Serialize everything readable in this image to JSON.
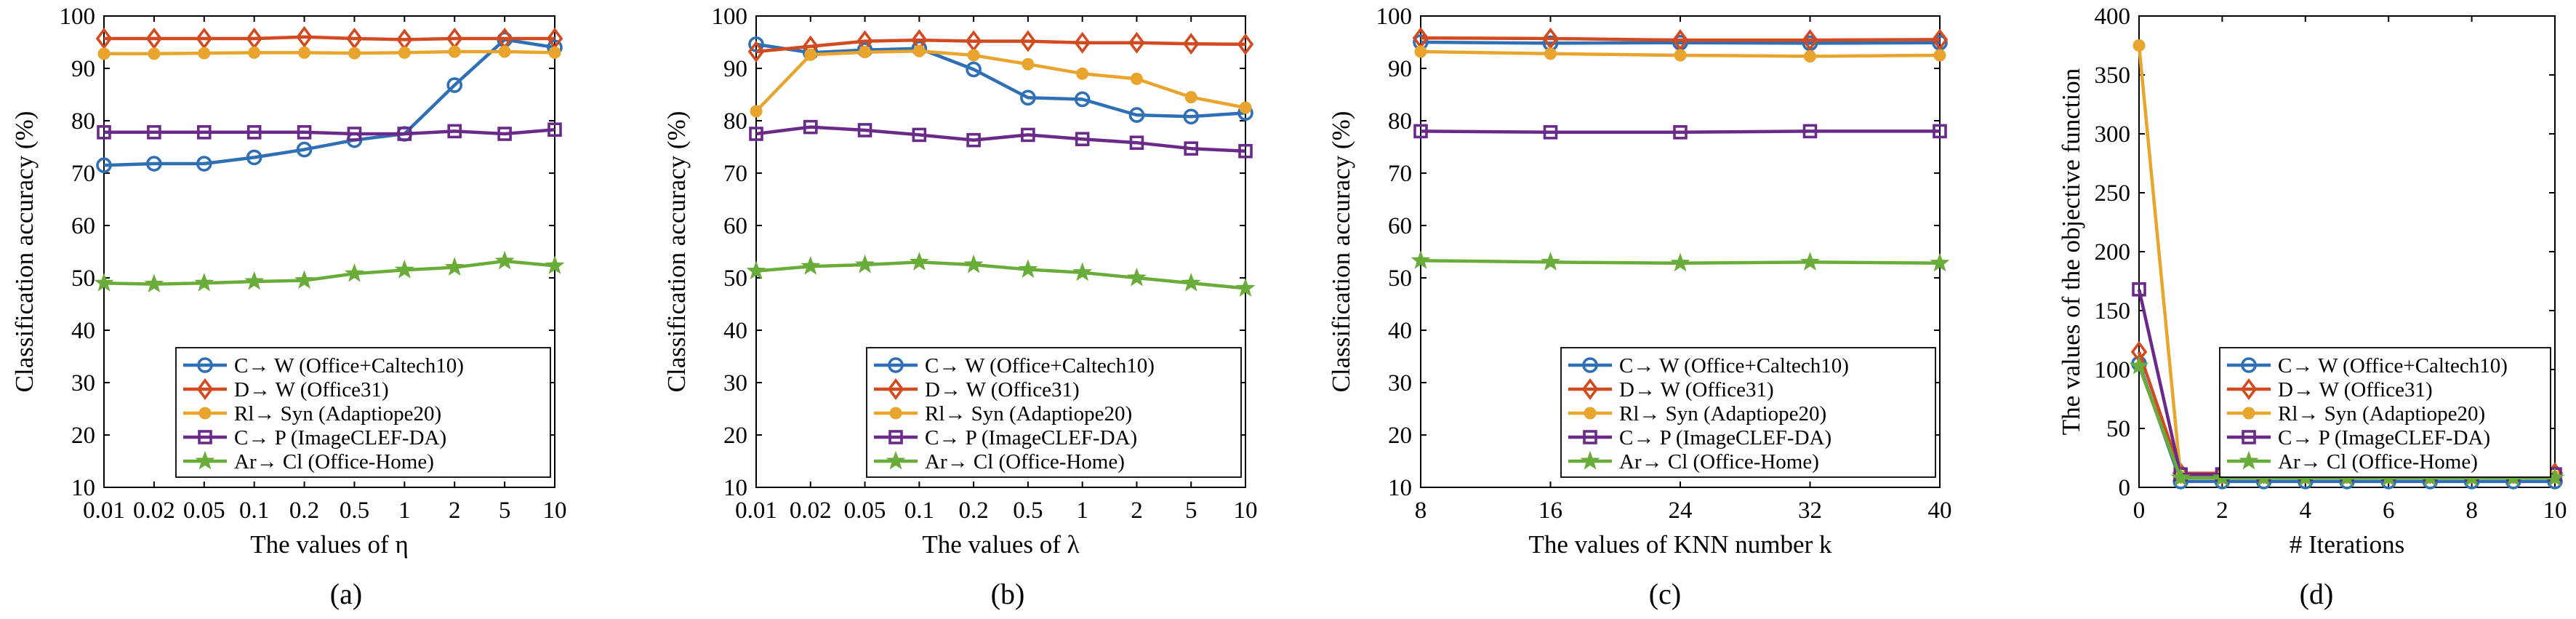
{
  "figure": {
    "captions": [
      "(a)",
      "(b)",
      "(c)",
      "(d)"
    ]
  },
  "colors": {
    "C_W": "#2e6fb5",
    "D_W": "#d24a1f",
    "Rl_Syn": "#e8a42c",
    "C_P": "#6a2a8a",
    "Ar_Cl": "#6aac3a"
  },
  "chart_data": [
    {
      "type": "line",
      "caption": "(a)",
      "xlabel": "The values of η",
      "ylabel": "Classification accuracy (%)",
      "x_tick_labels": [
        "0.01",
        "0.02",
        "0.05",
        "0.1",
        "0.2",
        "0.5",
        "1",
        "2",
        "5",
        "10"
      ],
      "ylim": [
        10,
        100
      ],
      "y_ticks": [
        10,
        20,
        30,
        40,
        50,
        60,
        70,
        80,
        90,
        100
      ],
      "grid": false,
      "legend_position": "bottom-right",
      "series": [
        {
          "name": "C→ W (Office+Caltech10)",
          "marker": "circle",
          "color": "#2e6fb5",
          "values": [
            71.5,
            71.8,
            71.8,
            73.0,
            74.5,
            76.3,
            77.5,
            86.8,
            95.5,
            94.0
          ]
        },
        {
          "name": "D→ W (Office31)",
          "marker": "diamond",
          "color": "#d24a1f",
          "values": [
            95.7,
            95.7,
            95.7,
            95.7,
            96.0,
            95.7,
            95.5,
            95.7,
            95.7,
            95.7
          ]
        },
        {
          "name": "Rl→ Syn (Adaptiope20)",
          "marker": "dot",
          "color": "#e8a42c",
          "values": [
            92.8,
            92.8,
            92.9,
            93.0,
            93.0,
            92.9,
            93.0,
            93.2,
            93.2,
            93.0
          ]
        },
        {
          "name": "C→ P (ImageCLEF-DA)",
          "marker": "square",
          "color": "#6a2a8a",
          "values": [
            77.8,
            77.8,
            77.8,
            77.8,
            77.8,
            77.5,
            77.5,
            78.0,
            77.5,
            78.3
          ]
        },
        {
          "name": "Ar→ Cl (Office-Home)",
          "marker": "star",
          "color": "#6aac3a",
          "values": [
            49.0,
            48.8,
            49.0,
            49.3,
            49.5,
            50.8,
            51.5,
            52.0,
            53.2,
            52.3
          ]
        }
      ]
    },
    {
      "type": "line",
      "caption": "(b)",
      "xlabel": "The values of λ",
      "ylabel": "Classification accuracy (%)",
      "x_tick_labels": [
        "0.01",
        "0.02",
        "0.05",
        "0.1",
        "0.2",
        "0.5",
        "1",
        "2",
        "5",
        "10"
      ],
      "ylim": [
        10,
        100
      ],
      "y_ticks": [
        10,
        20,
        30,
        40,
        50,
        60,
        70,
        80,
        90,
        100
      ],
      "grid": false,
      "legend_position": "bottom-right",
      "series": [
        {
          "name": "C→ W (Office+Caltech10)",
          "marker": "circle",
          "color": "#2e6fb5",
          "values": [
            94.6,
            93.0,
            93.5,
            93.8,
            89.8,
            84.4,
            84.1,
            81.1,
            80.8,
            81.5
          ]
        },
        {
          "name": "D→ W (Office31)",
          "marker": "diamond",
          "color": "#d24a1f",
          "values": [
            93.2,
            94.2,
            95.2,
            95.4,
            95.2,
            95.2,
            94.9,
            94.9,
            94.7,
            94.6
          ]
        },
        {
          "name": "Rl→ Syn (Adaptiope20)",
          "marker": "dot",
          "color": "#e8a42c",
          "values": [
            81.8,
            92.6,
            93.1,
            93.3,
            92.5,
            90.8,
            89.0,
            88.0,
            84.5,
            82.5
          ]
        },
        {
          "name": "C→ P (ImageCLEF-DA)",
          "marker": "square",
          "color": "#6a2a8a",
          "values": [
            77.5,
            78.8,
            78.2,
            77.3,
            76.3,
            77.3,
            76.5,
            75.8,
            74.7,
            74.2
          ]
        },
        {
          "name": "Ar→ Cl (Office-Home)",
          "marker": "star",
          "color": "#6aac3a",
          "values": [
            51.3,
            52.2,
            52.5,
            53.0,
            52.5,
            51.6,
            51.0,
            50.0,
            49.0,
            48.0
          ]
        }
      ]
    },
    {
      "type": "line",
      "caption": "(c)",
      "xlabel": "The values of KNN number k",
      "ylabel": "Classification accuracy (%)",
      "x_tick_labels": [
        "8",
        "16",
        "24",
        "32",
        "40"
      ],
      "ylim": [
        10,
        100
      ],
      "y_ticks": [
        10,
        20,
        30,
        40,
        50,
        60,
        70,
        80,
        90,
        100
      ],
      "grid": false,
      "legend_position": "bottom-right",
      "series": [
        {
          "name": "C→ W (Office+Caltech10)",
          "marker": "circle",
          "color": "#2e6fb5",
          "values": [
            95.0,
            94.8,
            94.9,
            94.8,
            94.9
          ]
        },
        {
          "name": "D→ W (Office31)",
          "marker": "diamond",
          "color": "#d24a1f",
          "values": [
            95.8,
            95.7,
            95.4,
            95.4,
            95.5
          ]
        },
        {
          "name": "Rl→ Syn (Adaptiope20)",
          "marker": "dot",
          "color": "#e8a42c",
          "values": [
            93.2,
            92.8,
            92.5,
            92.3,
            92.5
          ]
        },
        {
          "name": "C→ P (ImageCLEF-DA)",
          "marker": "square",
          "color": "#6a2a8a",
          "values": [
            78.0,
            77.8,
            77.8,
            78.0,
            78.0
          ]
        },
        {
          "name": "Ar→ Cl (Office-Home)",
          "marker": "star",
          "color": "#6aac3a",
          "values": [
            53.3,
            53.0,
            52.8,
            53.0,
            52.8
          ]
        }
      ]
    },
    {
      "type": "line",
      "caption": "(d)",
      "xlabel": "# Iterations",
      "ylabel": "The values of the objective function",
      "x_tick_labels": [
        "0",
        "2",
        "4",
        "6",
        "8",
        "10"
      ],
      "xlim": [
        0,
        10
      ],
      "ylim": [
        0,
        400
      ],
      "y_ticks": [
        0,
        50,
        100,
        150,
        200,
        250,
        300,
        350,
        400
      ],
      "grid": false,
      "legend_position": "bottom-right",
      "series": [
        {
          "name": "C→ W (Office+Caltech10)",
          "marker": "circle",
          "color": "#2e6fb5",
          "x": [
            0,
            1,
            2,
            3,
            4,
            5,
            6,
            7,
            8,
            9,
            10
          ],
          "values": [
            105,
            5,
            5,
            5,
            5,
            5,
            5,
            5,
            5,
            5,
            5
          ]
        },
        {
          "name": "D→ W (Office31)",
          "marker": "diamond",
          "color": "#d24a1f",
          "x": [
            0,
            1,
            2,
            3,
            4,
            5,
            6,
            7,
            8,
            9,
            10
          ],
          "values": [
            115,
            12,
            12,
            12,
            12,
            12,
            12,
            12,
            12,
            12,
            12
          ]
        },
        {
          "name": "Rl→ Syn (Adaptiope20)",
          "marker": "dot",
          "color": "#e8a42c",
          "x": [
            0,
            1,
            2,
            3,
            4,
            5,
            6,
            7,
            8,
            9,
            10
          ],
          "values": [
            375,
            9,
            9,
            9,
            9,
            9,
            9,
            9,
            9,
            9,
            9
          ]
        },
        {
          "name": "C→ P (ImageCLEF-DA)",
          "marker": "square",
          "color": "#6a2a8a",
          "x": [
            0,
            1,
            2,
            3,
            4,
            5,
            6,
            7,
            8,
            9,
            10
          ],
          "values": [
            168,
            11,
            11,
            11,
            11,
            11,
            11,
            11,
            11,
            11,
            11
          ]
        },
        {
          "name": "Ar→ Cl (Office-Home)",
          "marker": "star",
          "color": "#6aac3a",
          "x": [
            0,
            1,
            2,
            3,
            4,
            5,
            6,
            7,
            8,
            9,
            10
          ],
          "values": [
            103,
            8,
            8,
            8,
            8,
            8,
            8,
            8,
            8,
            8,
            8
          ]
        }
      ]
    }
  ]
}
